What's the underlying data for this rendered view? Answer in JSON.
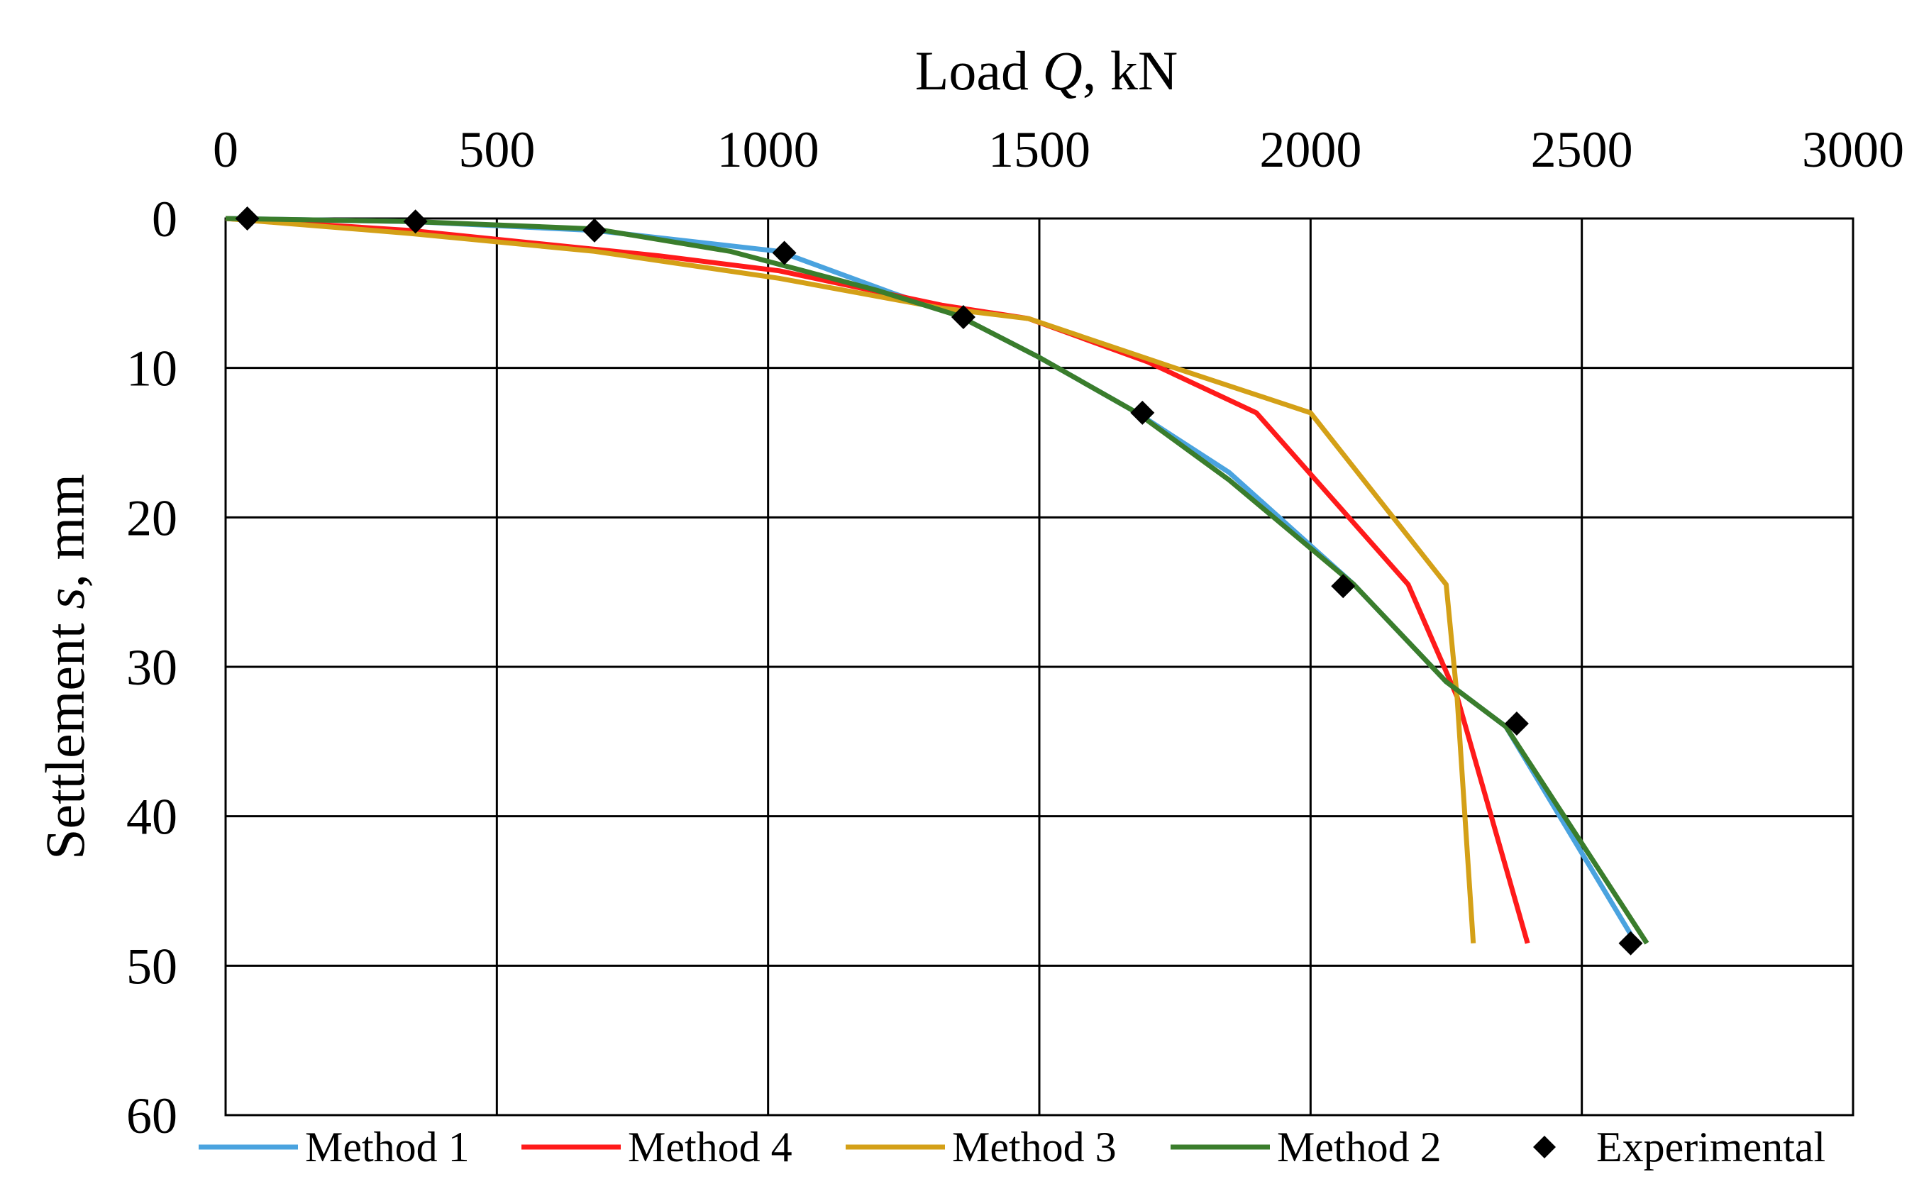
{
  "chart_data": {
    "type": "line",
    "xlabel_prefix": "Load ",
    "xlabel_var": "Q",
    "xlabel_suffix": ", kN",
    "ylabel_prefix": "Settlement ",
    "ylabel_var": "s",
    "ylabel_suffix": ", mm",
    "xlim": [
      0,
      3000
    ],
    "ylim": [
      0,
      60
    ],
    "y_inverted": true,
    "x_axis_position": "top",
    "x_ticks": [
      "0",
      "500",
      "1000",
      "1500",
      "2000",
      "2500",
      "3000"
    ],
    "y_ticks": [
      "0",
      "10",
      "20",
      "30",
      "40",
      "50",
      "60"
    ],
    "grid": true,
    "legend_position": "bottom",
    "series": [
      {
        "name": "Method 1",
        "color": "#4aa3df",
        "kind": "line",
        "points": [
          [
            0,
            0
          ],
          [
            340,
            0.2
          ],
          [
            680,
            0.8
          ],
          [
            1020,
            2.2
          ],
          [
            1230,
            5
          ],
          [
            1350,
            6.5
          ],
          [
            1500,
            9.3
          ],
          [
            1680,
            13
          ],
          [
            1850,
            17
          ],
          [
            2080,
            24.5
          ],
          [
            2250,
            31
          ],
          [
            2360,
            34
          ],
          [
            2600,
            48.5
          ]
        ]
      },
      {
        "name": "Method 4",
        "color": "#ff1a1a",
        "kind": "line",
        "points": [
          [
            0,
            0
          ],
          [
            340,
            0.8
          ],
          [
            800,
            2.5
          ],
          [
            1020,
            3.5
          ],
          [
            1320,
            5.8
          ],
          [
            1480,
            6.7
          ],
          [
            1700,
            9.6
          ],
          [
            1900,
            13
          ],
          [
            2180,
            24.5
          ],
          [
            2270,
            32
          ],
          [
            2400,
            48.5
          ]
        ]
      },
      {
        "name": "Method 3",
        "color": "#d4a017",
        "kind": "line",
        "points": [
          [
            0,
            0
          ],
          [
            340,
            1
          ],
          [
            680,
            2.2
          ],
          [
            1020,
            4
          ],
          [
            1320,
            6
          ],
          [
            1480,
            6.7
          ],
          [
            1750,
            10
          ],
          [
            2000,
            13
          ],
          [
            2250,
            24.5
          ],
          [
            2270,
            32
          ],
          [
            2300,
            48.5
          ]
        ]
      },
      {
        "name": "Method 2",
        "color": "#3a7d2c",
        "kind": "line",
        "points": [
          [
            0,
            0
          ],
          [
            340,
            0.2
          ],
          [
            680,
            0.7
          ],
          [
            930,
            2.2
          ],
          [
            1200,
            4.8
          ],
          [
            1350,
            6.5
          ],
          [
            1500,
            9.3
          ],
          [
            1680,
            13
          ],
          [
            1850,
            17.5
          ],
          [
            2080,
            24.5
          ],
          [
            2250,
            31
          ],
          [
            2360,
            34
          ],
          [
            2620,
            48.5
          ]
        ]
      },
      {
        "name": "Experimental",
        "color": "#000000",
        "kind": "marker",
        "points": [
          [
            40,
            0
          ],
          [
            350,
            0.2
          ],
          [
            680,
            0.8
          ],
          [
            1030,
            2.3
          ],
          [
            1360,
            6.6
          ],
          [
            1690,
            13
          ],
          [
            2060,
            24.6
          ],
          [
            2380,
            33.8
          ],
          [
            2590,
            48.5
          ]
        ]
      }
    ]
  }
}
